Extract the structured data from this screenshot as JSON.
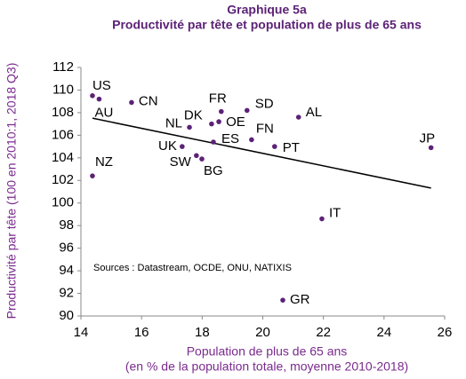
{
  "chart_data": {
    "type": "scatter",
    "title": "Graphique 5a",
    "subtitle": "Productivité par tête et population de plus de 65 ans",
    "x_label": "Population de plus de 65 ans",
    "x_label_2": "(en % de la population totale, moyenne 2010-2018)",
    "y_label": "Productivité par tête (100 en 2010:1, 2018 Q3)",
    "annotation": "Sources : Datastream,  OCDE, ONU, NATIXIS",
    "labels": [
      "US",
      "AU",
      "CN",
      "NZ",
      "FR",
      "SD",
      "AL",
      "NL",
      "DK",
      "OE",
      "ES",
      "FN",
      "PT",
      "UK",
      "SW",
      "BG",
      "JP",
      "IT",
      "GR"
    ],
    "x": [
      14.38,
      14.6,
      15.67,
      14.38,
      18.63,
      19.48,
      21.18,
      17.58,
      18.31,
      18.55,
      18.37,
      19.63,
      20.39,
      17.34,
      17.81,
      17.99,
      25.55,
      21.95,
      20.66
    ],
    "values": [
      109.5,
      109.2,
      108.9,
      102.4,
      108.1,
      108.2,
      107.6,
      106.7,
      107.0,
      107.2,
      105.4,
      105.6,
      105.0,
      105.0,
      104.2,
      103.9,
      104.9,
      98.6,
      91.4
    ],
    "color": "#5c2277",
    "trendline": "linear",
    "xlim": [
      14,
      26
    ],
    "xticks": [
      14,
      16,
      18,
      20,
      22,
      24,
      26
    ],
    "ylim": [
      90,
      112
    ],
    "yticks": [
      90,
      92,
      94,
      96,
      98,
      100,
      102,
      104,
      106,
      108,
      110,
      112
    ]
  }
}
